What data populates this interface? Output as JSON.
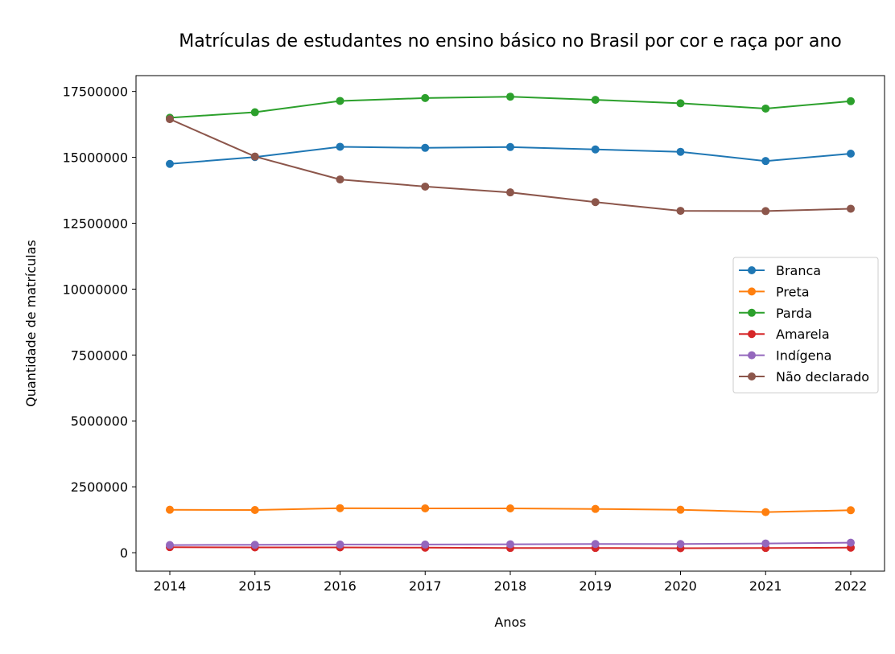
{
  "chart_data": {
    "type": "line",
    "title": "Matrículas de estudantes no ensino básico no Brasil por cor e raça por ano",
    "xlabel": "Anos",
    "ylabel": "Quantidade de matrículas",
    "x": [
      2014,
      2015,
      2016,
      2017,
      2018,
      2019,
      2020,
      2021,
      2022
    ],
    "ylim": [
      -700000,
      18100000
    ],
    "yticks": [
      0,
      2500000,
      5000000,
      7500000,
      10000000,
      12500000,
      15000000,
      17500000
    ],
    "ytick_labels": [
      "0",
      "2500000",
      "5000000",
      "7500000",
      "10000000",
      "12500000",
      "15000000",
      "17500000"
    ],
    "grid": false,
    "legend_position": "center-right",
    "series": [
      {
        "name": "Branca",
        "color": "#1f77b4",
        "values": [
          14750000,
          15010000,
          15400000,
          15360000,
          15390000,
          15300000,
          15210000,
          14860000,
          15140000
        ]
      },
      {
        "name": "Preta",
        "color": "#ff7f0e",
        "values": [
          1630000,
          1620000,
          1690000,
          1680000,
          1680000,
          1660000,
          1630000,
          1540000,
          1610000
        ]
      },
      {
        "name": "Parda",
        "color": "#2ca02c",
        "values": [
          16500000,
          16710000,
          17140000,
          17250000,
          17300000,
          17180000,
          17050000,
          16850000,
          17130000
        ]
      },
      {
        "name": "Amarela",
        "color": "#d62728",
        "values": [
          210000,
          200000,
          200000,
          190000,
          180000,
          180000,
          170000,
          180000,
          190000
        ]
      },
      {
        "name": "Indígena",
        "color": "#9467bd",
        "values": [
          290000,
          300000,
          310000,
          310000,
          320000,
          330000,
          330000,
          350000,
          380000
        ]
      },
      {
        "name": "Não declarado",
        "color": "#8c564b",
        "values": [
          16450000,
          15030000,
          14160000,
          13890000,
          13670000,
          13300000,
          12970000,
          12960000,
          13050000
        ]
      }
    ]
  }
}
